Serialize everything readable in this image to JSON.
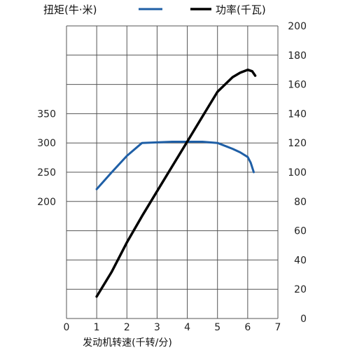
{
  "chart_data": {
    "type": "line",
    "xlabel": "发动机转速(千转/分)",
    "x_ticks": [
      "0",
      "1",
      "2",
      "3",
      "4",
      "5",
      "6",
      "7"
    ],
    "xlim": [
      0,
      7
    ],
    "left_axis": {
      "ylim": [
        0,
        500
      ],
      "ticks": [
        {
          "value": 200,
          "label": "200"
        },
        {
          "value": 250,
          "label": "250"
        },
        {
          "value": 300,
          "label": "300"
        },
        {
          "value": 350,
          "label": "350"
        }
      ]
    },
    "right_axis": {
      "ylim": [
        0,
        200
      ],
      "ticks": [
        {
          "value": 0,
          "label": "0"
        },
        {
          "value": 20,
          "label": "20"
        },
        {
          "value": 40,
          "label": "40"
        },
        {
          "value": 60,
          "label": "60"
        },
        {
          "value": 80,
          "label": "80"
        },
        {
          "value": 100,
          "label": "100"
        },
        {
          "value": 120,
          "label": "120"
        },
        {
          "value": 140,
          "label": "140"
        },
        {
          "value": 160,
          "label": "160"
        },
        {
          "value": 180,
          "label": "180"
        },
        {
          "value": 200,
          "label": "200"
        }
      ]
    },
    "grid": true,
    "legend_placement": "top",
    "series": [
      {
        "name": "扭矩(牛·米)",
        "axis": "left",
        "color": "#1f5fa6",
        "points": [
          [
            1.0,
            221
          ],
          [
            1.5,
            250
          ],
          [
            2.0,
            278
          ],
          [
            2.5,
            300
          ],
          [
            3.0,
            301
          ],
          [
            3.5,
            302
          ],
          [
            4.0,
            302
          ],
          [
            4.5,
            302
          ],
          [
            5.0,
            300
          ],
          [
            5.5,
            290
          ],
          [
            5.75,
            284
          ],
          [
            6.0,
            276
          ],
          [
            6.1,
            266
          ],
          [
            6.2,
            250
          ]
        ]
      },
      {
        "name": "功率(千瓦)",
        "axis": "right",
        "color": "#000000",
        "points": [
          [
            1.0,
            15
          ],
          [
            1.5,
            32
          ],
          [
            2.0,
            52
          ],
          [
            2.5,
            70
          ],
          [
            3.0,
            87
          ],
          [
            3.5,
            104
          ],
          [
            4.0,
            121
          ],
          [
            4.5,
            138
          ],
          [
            5.0,
            155
          ],
          [
            5.5,
            165
          ],
          [
            5.75,
            168
          ],
          [
            6.0,
            170
          ],
          [
            6.15,
            169
          ],
          [
            6.25,
            166
          ]
        ]
      }
    ]
  }
}
